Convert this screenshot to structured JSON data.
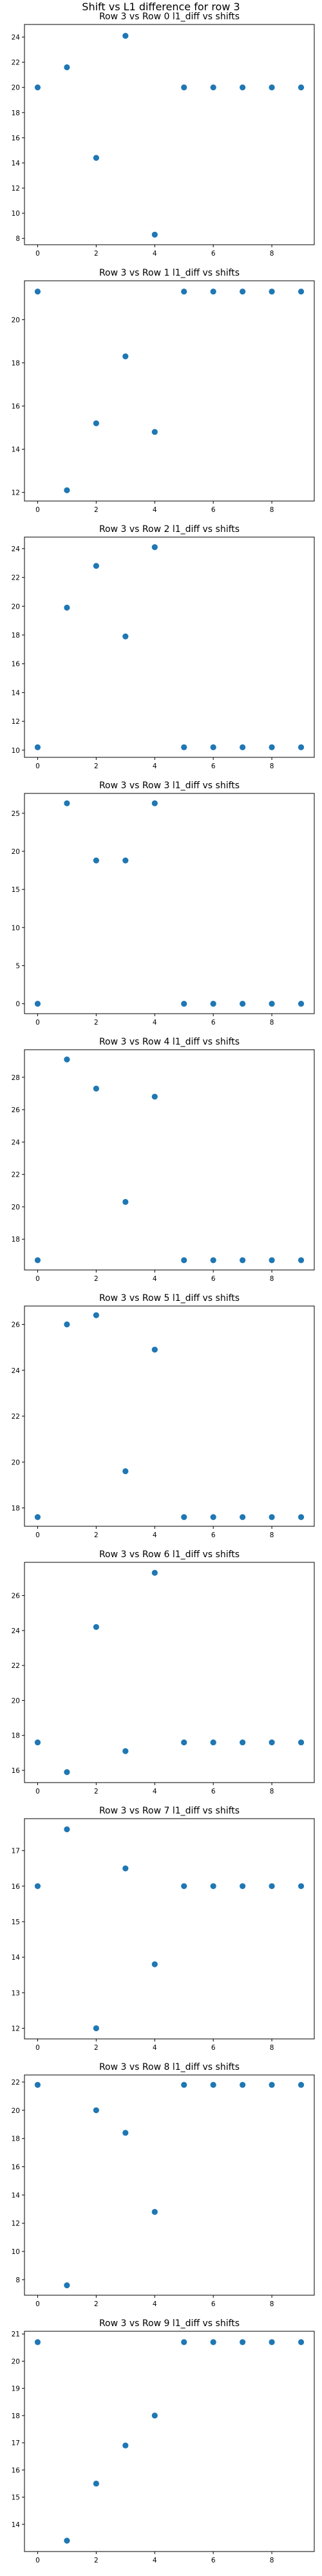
{
  "figure": {
    "suptitle": "Shift vs L1 difference for row 3"
  },
  "chart_data": [
    {
      "type": "scatter",
      "title": "Row 3 vs Row 0 l1_diff vs shifts",
      "x": [
        0,
        1,
        2,
        3,
        4,
        5,
        6,
        7,
        8,
        9
      ],
      "y": [
        20,
        21.6,
        14.4,
        24.1,
        8.3,
        20,
        20,
        20,
        20,
        20
      ],
      "xlim": [
        -0.45,
        9.45
      ],
      "ylim": [
        7.5,
        25.0
      ],
      "xticks": [
        0,
        2,
        4,
        6,
        8
      ],
      "yticks": [
        8,
        10,
        12,
        14,
        16,
        18,
        20,
        22,
        24
      ],
      "marker_color": "#1f77b4"
    },
    {
      "type": "scatter",
      "title": "Row 3 vs Row 1 l1_diff vs shifts",
      "x": [
        0,
        1,
        2,
        3,
        4,
        5,
        6,
        7,
        8,
        9
      ],
      "y": [
        21.3,
        12.1,
        15.2,
        18.3,
        14.8,
        21.3,
        21.3,
        21.3,
        21.3,
        21.3
      ],
      "xlim": [
        -0.45,
        9.45
      ],
      "ylim": [
        11.6,
        21.8
      ],
      "xticks": [
        0,
        2,
        4,
        6,
        8
      ],
      "yticks": [
        12,
        14,
        16,
        18,
        20
      ],
      "marker_color": "#1f77b4"
    },
    {
      "type": "scatter",
      "title": "Row 3 vs Row 2 l1_diff vs shifts",
      "x": [
        0,
        1,
        2,
        3,
        4,
        5,
        6,
        7,
        8,
        9
      ],
      "y": [
        10.2,
        19.9,
        22.8,
        17.9,
        24.1,
        10.2,
        10.2,
        10.2,
        10.2,
        10.2
      ],
      "xlim": [
        -0.45,
        9.45
      ],
      "ylim": [
        9.5,
        24.8
      ],
      "xticks": [
        0,
        2,
        4,
        6,
        8
      ],
      "yticks": [
        10,
        12,
        14,
        16,
        18,
        20,
        22,
        24
      ],
      "marker_color": "#1f77b4"
    },
    {
      "type": "scatter",
      "title": "Row 3 vs Row 3 l1_diff vs shifts",
      "x": [
        0,
        1,
        2,
        3,
        4,
        5,
        6,
        7,
        8,
        9
      ],
      "y": [
        0,
        26.3,
        18.8,
        18.8,
        26.3,
        0,
        0,
        0,
        0,
        0
      ],
      "xlim": [
        -0.45,
        9.45
      ],
      "ylim": [
        -1.3,
        27.6
      ],
      "xticks": [
        0,
        2,
        4,
        6,
        8
      ],
      "yticks": [
        0,
        5,
        10,
        15,
        20,
        25
      ],
      "marker_color": "#1f77b4"
    },
    {
      "type": "scatter",
      "title": "Row 3 vs Row 4 l1_diff vs shifts",
      "x": [
        0,
        1,
        2,
        3,
        4,
        5,
        6,
        7,
        8,
        9
      ],
      "y": [
        16.7,
        29.1,
        27.3,
        20.3,
        26.8,
        16.7,
        16.7,
        16.7,
        16.7,
        16.7
      ],
      "xlim": [
        -0.45,
        9.45
      ],
      "ylim": [
        16.1,
        29.7
      ],
      "xticks": [
        0,
        2,
        4,
        6,
        8
      ],
      "yticks": [
        18,
        20,
        22,
        24,
        26,
        28
      ],
      "marker_color": "#1f77b4"
    },
    {
      "type": "scatter",
      "title": "Row 3 vs Row 5 l1_diff vs shifts",
      "x": [
        0,
        1,
        2,
        3,
        4,
        5,
        6,
        7,
        8,
        9
      ],
      "y": [
        17.6,
        26.0,
        26.4,
        19.6,
        24.9,
        17.6,
        17.6,
        17.6,
        17.6,
        17.6
      ],
      "xlim": [
        -0.45,
        9.45
      ],
      "ylim": [
        17.2,
        26.8
      ],
      "xticks": [
        0,
        2,
        4,
        6,
        8
      ],
      "yticks": [
        18,
        20,
        22,
        24,
        26
      ],
      "marker_color": "#1f77b4"
    },
    {
      "type": "scatter",
      "title": "Row 3 vs Row 6 l1_diff vs shifts",
      "x": [
        0,
        1,
        2,
        3,
        4,
        5,
        6,
        7,
        8,
        9
      ],
      "y": [
        17.6,
        15.9,
        24.2,
        17.1,
        27.3,
        17.6,
        17.6,
        17.6,
        17.6,
        17.6
      ],
      "xlim": [
        -0.45,
        9.45
      ],
      "ylim": [
        15.3,
        27.9
      ],
      "xticks": [
        0,
        2,
        4,
        6,
        8
      ],
      "yticks": [
        16,
        18,
        20,
        22,
        24,
        26
      ],
      "marker_color": "#1f77b4"
    },
    {
      "type": "scatter",
      "title": "Row 3 vs Row 7 l1_diff vs shifts",
      "x": [
        0,
        1,
        2,
        3,
        4,
        5,
        6,
        7,
        8,
        9
      ],
      "y": [
        16.0,
        17.6,
        12.0,
        16.5,
        13.8,
        16.0,
        16.0,
        16.0,
        16.0,
        16.0
      ],
      "xlim": [
        -0.45,
        9.45
      ],
      "ylim": [
        11.7,
        17.9
      ],
      "xticks": [
        0,
        2,
        4,
        6,
        8
      ],
      "yticks": [
        12,
        13,
        14,
        15,
        16,
        17
      ],
      "marker_color": "#1f77b4"
    },
    {
      "type": "scatter",
      "title": "Row 3 vs Row 8 l1_diff vs shifts",
      "x": [
        0,
        1,
        2,
        3,
        4,
        5,
        6,
        7,
        8,
        9
      ],
      "y": [
        21.8,
        7.6,
        20.0,
        18.4,
        12.8,
        21.8,
        21.8,
        21.8,
        21.8,
        21.8
      ],
      "xlim": [
        -0.45,
        9.45
      ],
      "ylim": [
        6.9,
        22.5
      ],
      "xticks": [
        0,
        2,
        4,
        6,
        8
      ],
      "yticks": [
        8,
        10,
        12,
        14,
        16,
        18,
        20,
        22
      ],
      "marker_color": "#1f77b4"
    },
    {
      "type": "scatter",
      "title": "Row 3 vs Row 9 l1_diff vs shifts",
      "x": [
        0,
        1,
        2,
        3,
        4,
        5,
        6,
        7,
        8,
        9
      ],
      "y": [
        20.7,
        13.4,
        15.5,
        16.9,
        18.0,
        20.7,
        20.7,
        20.7,
        20.7,
        20.7
      ],
      "xlim": [
        -0.45,
        9.45
      ],
      "ylim": [
        13.0,
        21.1
      ],
      "xticks": [
        0,
        2,
        4,
        6,
        8
      ],
      "yticks": [
        14,
        15,
        16,
        17,
        18,
        19,
        20,
        21
      ],
      "marker_color": "#1f77b4"
    }
  ]
}
